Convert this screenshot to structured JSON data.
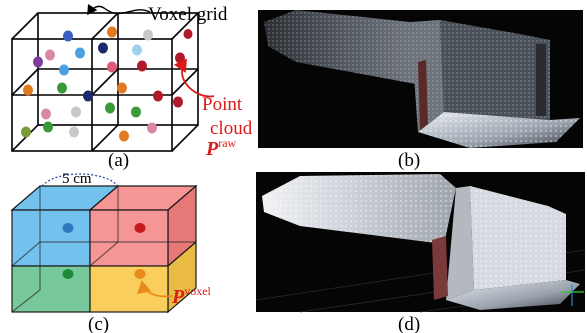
{
  "panel_a": {
    "title": "Voxel grid",
    "callout_line1": "Point",
    "callout_line2": "cloud",
    "symbol": "P",
    "superscript": "raw",
    "caption": "(a)",
    "colors": {
      "callout": "#dd1a1a",
      "dots": [
        "#3b5fc0",
        "#4aa0e0",
        "#e07a1f",
        "#7b3f9a",
        "#e05a7a",
        "#3a9a3a",
        "#9fd0ef",
        "#b01a2a",
        "#1a2a6a",
        "#c8c8c8",
        "#7a9a3a",
        "#d88aa0",
        "#8a6a4a"
      ]
    }
  },
  "panel_b": {
    "caption": "(b)"
  },
  "panel_c": {
    "dimension": "5 cm",
    "symbol": "P",
    "superscript": "voxel",
    "caption": "(c)",
    "colors": {
      "blue": "#5bb6ea",
      "red": "#f27a7a",
      "green": "#5fc08a",
      "yellow": "#f8c94a",
      "callout": "#e88a1a"
    }
  },
  "panel_d": {
    "caption": "(d)"
  }
}
